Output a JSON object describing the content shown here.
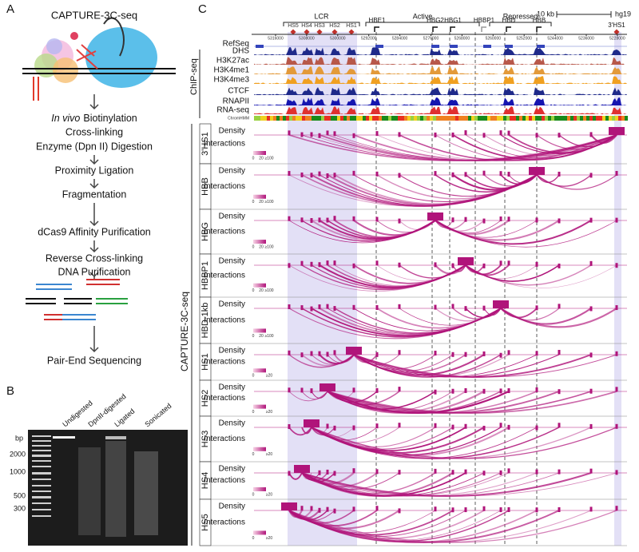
{
  "panels": {
    "a": {
      "label": "A",
      "title": "CAPTURE-3C-seq",
      "steps": [
        {
          "italic": "In vivo",
          "text": "Biotinylation"
        },
        "Cross-linking",
        "Enzyme (Dpn II) Digestion",
        "Proximity Ligation",
        "Fragmentation",
        "dCas9 Affinity Purification",
        "Reverse Cross-linking",
        "DNA Purification",
        "Pair-End Sequencing"
      ]
    },
    "b": {
      "label": "B",
      "lanes": [
        "Undigested",
        "DpnII-digested",
        "Ligated",
        "Sonicated"
      ],
      "unit": "bp",
      "sizes": [
        "2000",
        "1000",
        "500",
        "300"
      ]
    },
    "c": {
      "label": "C",
      "regions": [
        "LCR",
        "Active",
        "Repressed"
      ],
      "scale": "10 kb",
      "genome": "hg19",
      "hs_sites": [
        "HS5",
        "HS4",
        "HS3",
        "HS2",
        "HS1"
      ],
      "genes": [
        "HBE1",
        "HBG2",
        "HBG1",
        "HBBP1",
        "HBD",
        "HBB",
        "3'HS1"
      ],
      "coordinates": [
        5316000,
        5308000,
        5300000,
        5292000,
        5284000,
        5276000,
        5268000,
        5260000,
        5252000,
        5244000,
        5236000,
        5228000
      ],
      "chip_title": "ChIP-seq",
      "tracks": [
        "RefSeq",
        "DHS",
        "H3K27ac",
        "H3K4me1",
        "H3K4me3",
        "CTCF",
        "RNAPII",
        "RNA-seq",
        "ChromHMM"
      ],
      "capture_title": "CAPTURE-3C-seq",
      "density_label": "Density",
      "interactions_label": "Interactions",
      "viewpoints": [
        {
          "name": "3'HS1",
          "scale": [
            "0",
            "20",
            "≥100"
          ]
        },
        {
          "name": "HBB",
          "scale": [
            "0",
            "20",
            "≥100"
          ]
        },
        {
          "name": "HBG",
          "scale": [
            "0",
            "20",
            "≥100"
          ]
        },
        {
          "name": "HBBP1",
          "scale": [
            "0",
            "20",
            "≥100"
          ]
        },
        {
          "name": "HBD-1kb",
          "scale": [
            "0",
            "20",
            "≥100"
          ]
        },
        {
          "name": "HS1",
          "scale": [
            "0",
            "≥20"
          ]
        },
        {
          "name": "HS2",
          "scale": [
            "0",
            "≥20"
          ]
        },
        {
          "name": "HS3",
          "scale": [
            "0",
            "≥20"
          ]
        },
        {
          "name": "HS4",
          "scale": [
            "0",
            "≥20"
          ]
        },
        {
          "name": "HS5",
          "scale": [
            "0",
            "≥20"
          ]
        }
      ]
    }
  }
}
